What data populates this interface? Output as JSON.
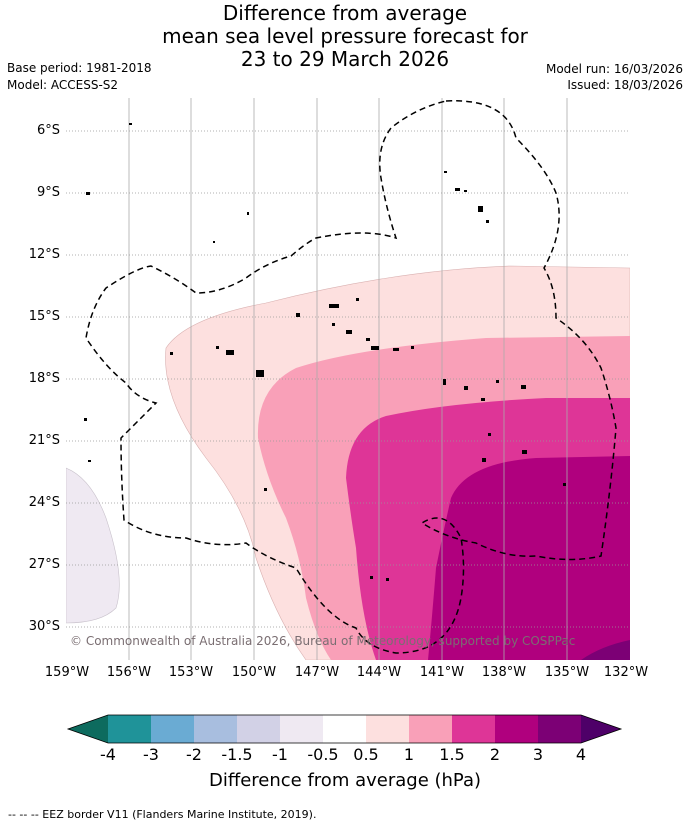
{
  "title": {
    "line1": "Difference from average",
    "line2": "mean sea level pressure forecast for",
    "line3": "23 to 29 March 2026"
  },
  "meta": {
    "base_period": "Base period: 1981-2018",
    "model": "Model: ACCESS-S2",
    "model_run": "Model run: 16/03/2026",
    "issued": "Issued: 18/03/2026"
  },
  "map": {
    "lat_labels": [
      "6°S",
      "9°S",
      "12°S",
      "15°S",
      "18°S",
      "21°S",
      "24°S",
      "27°S",
      "30°S"
    ],
    "lon_labels": [
      "159°W",
      "156°W",
      "153°W",
      "150°W",
      "147°W",
      "144°W",
      "141°W",
      "138°W",
      "135°W",
      "132°W"
    ],
    "copyright": "© Commonwealth of Australia 2026, Bureau of Meteorology, supported by COSPPac"
  },
  "colorbar": {
    "ticks": [
      "-4",
      "-3",
      "-2",
      "-1.5",
      "-1",
      "-0.5",
      "0.5",
      "1",
      "1.5",
      "2",
      "3",
      "4"
    ],
    "colors": [
      "#0d6b5e",
      "#1f9399",
      "#6aabd3",
      "#a8bedf",
      "#d2d1e6",
      "#efe9f2",
      "#ffffff",
      "#fde0df",
      "#f9a0b8",
      "#de3597",
      "#b0007e",
      "#7c0075",
      "#4e0068"
    ],
    "title": "Difference from average (hPa)"
  },
  "footer": "--  --  -- EEZ border V11 (Flanders Marine Institute, 2019)."
}
